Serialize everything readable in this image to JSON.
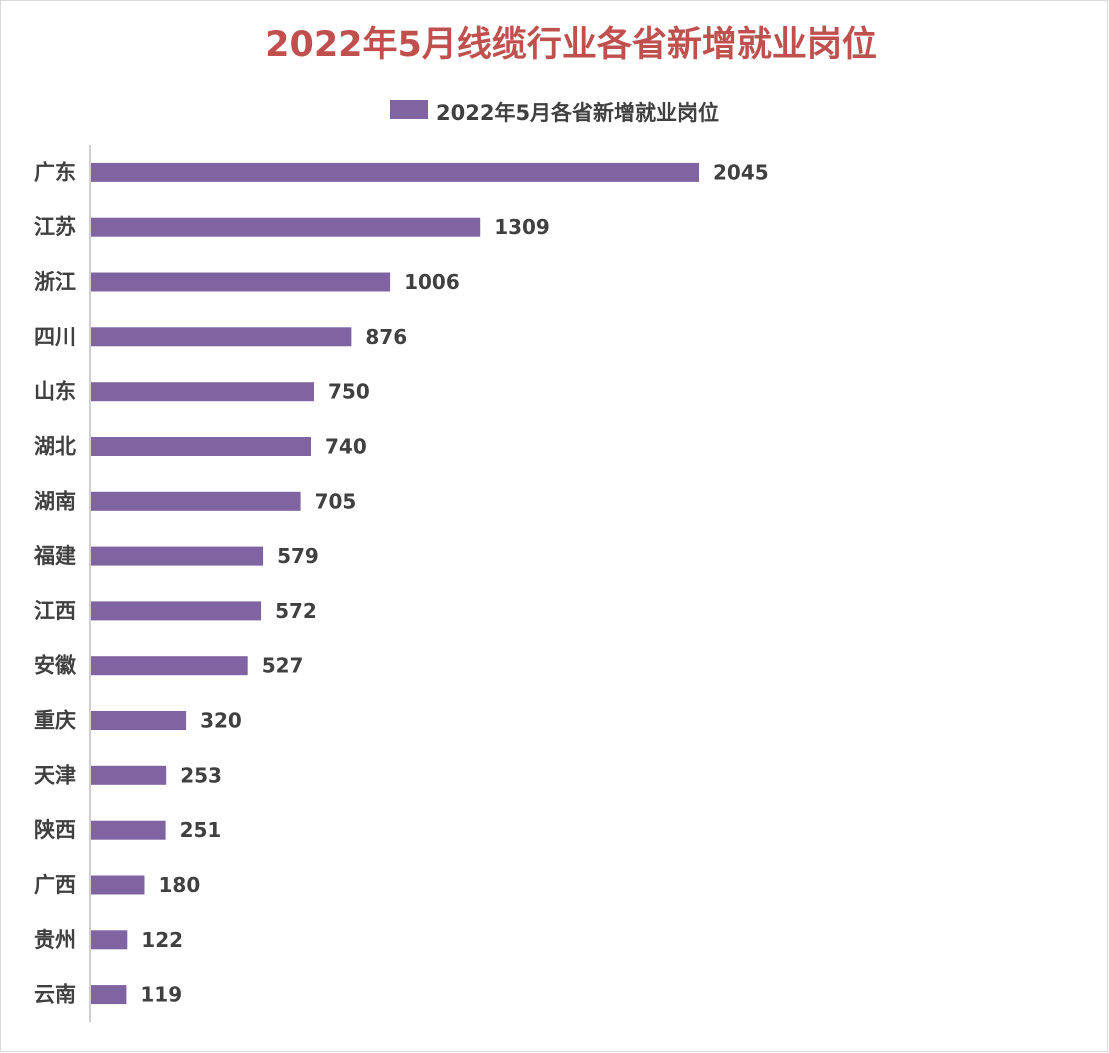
{
  "chart_data": {
    "type": "bar",
    "orientation": "horizontal",
    "title": "2022年5月线缆行业各省新增就业岗位",
    "categories": [
      "广东",
      "江苏",
      "浙江",
      "四川",
      "山东",
      "湖北",
      "湖南",
      "福建",
      "江西",
      "安徽",
      "重庆",
      "天津",
      "陕西",
      "广西",
      "贵州",
      "云南"
    ],
    "series": [
      {
        "name": "2022年5月各省新增就业岗位",
        "values": [
          2045,
          1309,
          1006,
          876,
          750,
          740,
          705,
          579,
          572,
          527,
          320,
          253,
          251,
          180,
          122,
          119
        ]
      }
    ],
    "xlim": [
      0,
      2500
    ],
    "legend_position": "top",
    "grid": false,
    "data_labels": true,
    "colors": {
      "bar": "#8064a2",
      "title": "#c0504d"
    }
  }
}
